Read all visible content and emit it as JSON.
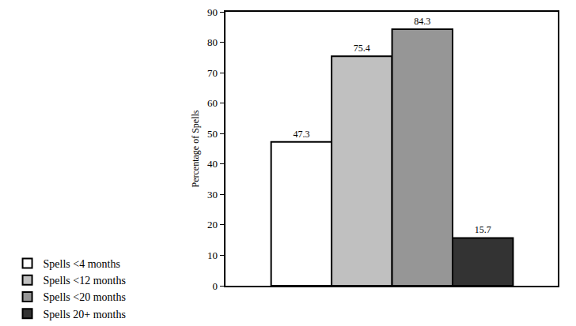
{
  "chart_data": {
    "type": "bar",
    "y_label": "Percentage of Spells",
    "categories": [
      "Spells <4 months",
      "Spells <12 months",
      "Spells <20 months",
      "Spells 20+ months"
    ],
    "values": [
      47.3,
      75.4,
      84.3,
      15.7
    ],
    "colors": [
      "#ffffff",
      "#c0c0c0",
      "#969696",
      "#333333"
    ],
    "ylim": [
      0,
      90
    ],
    "yticks": [
      0,
      10,
      20,
      30,
      40,
      50,
      60,
      70,
      80,
      90
    ],
    "grid": false,
    "legend": "bottom",
    "data_labels": true,
    "tick_labels": "y"
  }
}
